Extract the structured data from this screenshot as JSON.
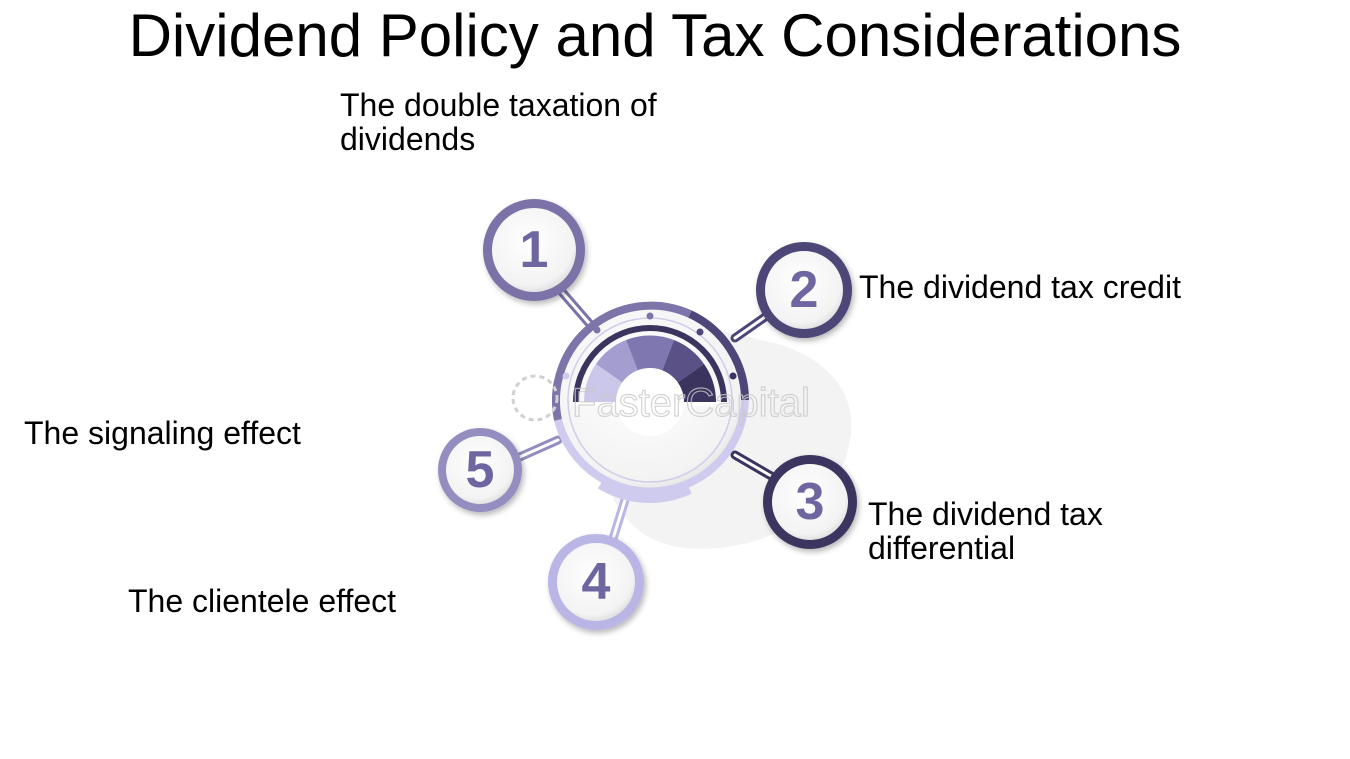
{
  "title": "Dividend Policy and Tax Considerations",
  "items": [
    {
      "number": "1",
      "label_lines": [
        "The double taxation of",
        "dividends"
      ],
      "color": "#7b72a8"
    },
    {
      "number": "2",
      "label_lines": [
        "The dividend tax credit"
      ],
      "color": "#4e4678"
    },
    {
      "number": "3",
      "label_lines": [
        "The dividend tax",
        "differential"
      ],
      "color": "#3b345f"
    },
    {
      "number": "4",
      "label_lines": [
        "The clientele effect"
      ],
      "color": "#b9b6e6"
    },
    {
      "number": "5",
      "label_lines": [
        "The signaling effect"
      ],
      "color": "#948ec0"
    }
  ],
  "watermark": "FasterCapital",
  "colors": {
    "hub_ring": "#7d74aa",
    "hub_light": "#cfcbee",
    "number_text": "#6e66a0"
  }
}
